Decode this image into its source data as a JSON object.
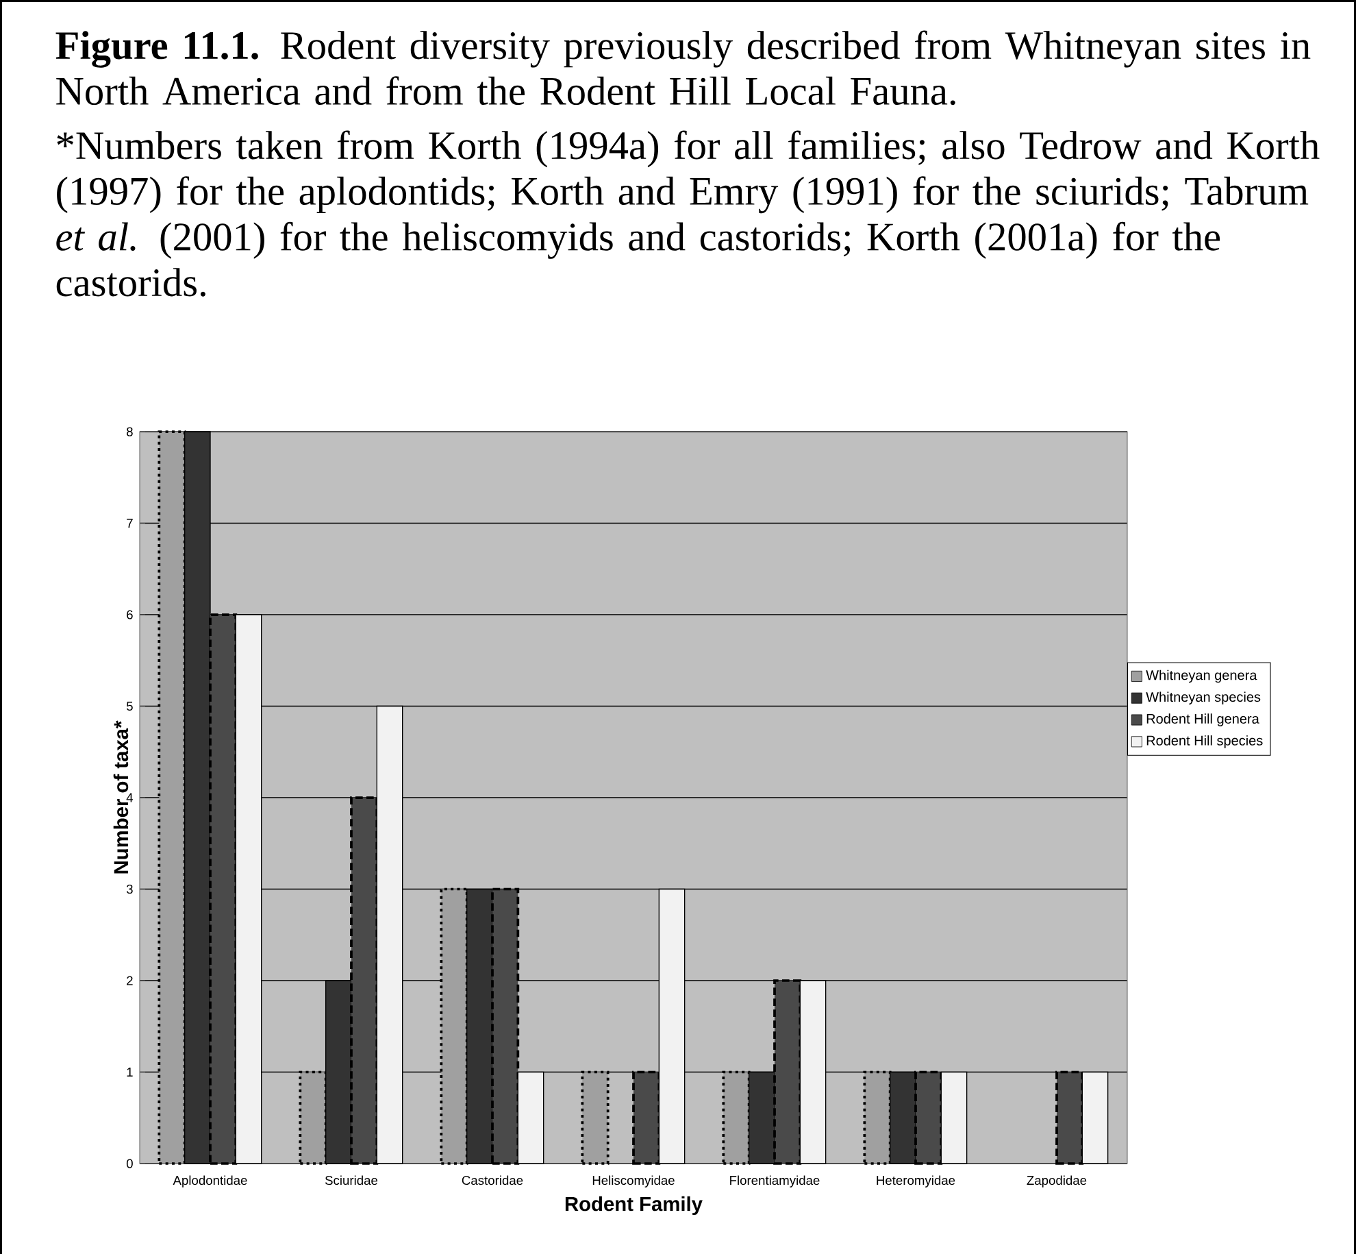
{
  "chart_data": {
    "type": "bar",
    "title": "**Figure 11.1.** Rodent diversity previously described from Whitneyan sites in North America and from the Rodent Hill Local Fauna.",
    "annotations": [
      "*Numbers taken from Korth (1994a) for all families; also Tedrow and Korth (1997) for the aplodontids; Korth and Emry (1991) for the sciurids; Tabrum *et al.* (2001) for the heliscomyids and castorids; Korth (2001a) for the castorids."
    ],
    "xlabel": "Rodent Family",
    "ylabel": "Number of taxa*",
    "categories": [
      "Aplodontidae",
      "Sciuridae",
      "Castoridae",
      "Heliscomyidae",
      "Florentiamyidae",
      "Heteromyidae",
      "Zapodidae"
    ],
    "series": [
      {
        "name": "Whitneyan genera",
        "color": "#a0a0a0",
        "line_style": "dotted",
        "values": [
          8,
          1,
          3,
          1,
          1,
          1,
          null
        ]
      },
      {
        "name": "Whitneyan species",
        "color": "#333333",
        "line_style": "solid",
        "values": [
          8,
          2,
          3,
          null,
          1,
          1,
          null
        ]
      },
      {
        "name": "Rodent Hill genera",
        "color": "#4a4a4a",
        "line_style": "dashed",
        "values": [
          6,
          4,
          3,
          1,
          2,
          1,
          1
        ]
      },
      {
        "name": "Rodent Hill species",
        "color": "#f2f2f2",
        "line_style": "solid",
        "values": [
          6,
          5,
          1,
          3,
          2,
          1,
          1
        ]
      }
    ],
    "ylim": [
      0,
      8
    ],
    "yticks": [
      0,
      1,
      2,
      3,
      4,
      5,
      6,
      7,
      8
    ],
    "grid": "y",
    "legend": "right"
  }
}
